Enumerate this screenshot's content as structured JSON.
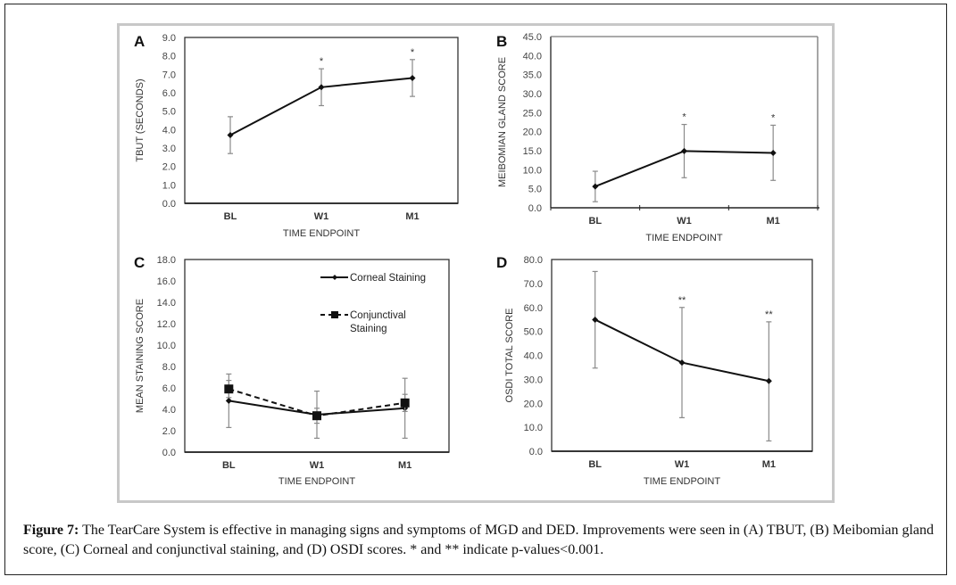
{
  "caption": {
    "label": "Figure 7:",
    "text": " The TearCare System is effective in managing signs and symptoms of MGD and DED.  Improvements were seen in (A) TBUT, (B) Meibomian gland score, (C) Corneal and conjunctival staining, and (D) OSDI scores. * and ** indicate p-values<0.001."
  },
  "chart_data": [
    {
      "panel": "A",
      "type": "line",
      "title": "",
      "xlabel": "TIME ENDPOINT",
      "ylabel": "TBUT (SECONDS)",
      "categories": [
        "BL",
        "W1",
        "M1"
      ],
      "ylim": [
        0,
        9
      ],
      "yticks": [
        "0.0",
        "1.0",
        "2.0",
        "3.0",
        "4.0",
        "5.0",
        "6.0",
        "7.0",
        "8.0",
        "9.0"
      ],
      "series": [
        {
          "name": "TBUT",
          "style": "solid",
          "marker": "diamond",
          "values": [
            3.7,
            6.3,
            6.8
          ],
          "err_low": [
            2.7,
            5.3,
            5.8
          ],
          "err_high": [
            4.7,
            7.3,
            7.8
          ]
        }
      ],
      "annotations": [
        "",
        "*",
        "*"
      ],
      "frame": "box"
    },
    {
      "panel": "B",
      "type": "line",
      "title": "",
      "xlabel": "TIME ENDPOINT",
      "ylabel": "MEIBOMIAN GLAND SCORE",
      "categories": [
        "BL",
        "W1",
        "M1"
      ],
      "ylim": [
        0,
        45
      ],
      "yticks": [
        "0.0",
        "5.0",
        "10.0",
        "15.0",
        "20.0",
        "25.0",
        "30.0",
        "35.0",
        "40.0",
        "45.0"
      ],
      "series": [
        {
          "name": "Meibomian gland score",
          "style": "solid",
          "marker": "diamond",
          "values": [
            5.6,
            14.9,
            14.4
          ],
          "err_low": [
            1.6,
            7.9,
            7.2
          ],
          "err_high": [
            9.6,
            21.9,
            21.7
          ]
        }
      ],
      "annotations": [
        "",
        "*",
        "*"
      ],
      "frame": "box-ticks"
    },
    {
      "panel": "C",
      "type": "line",
      "title": "",
      "xlabel": "TIME ENDPOINT",
      "ylabel": "MEAN  STAINING SCORE",
      "categories": [
        "BL",
        "W1",
        "M1"
      ],
      "ylim": [
        0,
        18
      ],
      "yticks": [
        "0.0",
        "2.0",
        "4.0",
        "6.0",
        "8.0",
        "10.0",
        "12.0",
        "14.0",
        "16.0",
        "18.0"
      ],
      "legend_position": "top-right",
      "series": [
        {
          "name": "Corneal Staining",
          "legend": [
            "Corneal Staining"
          ],
          "style": "solid",
          "marker": "diamond",
          "values": [
            4.8,
            3.5,
            4.1
          ],
          "err_low": [
            2.3,
            1.3,
            1.3
          ],
          "err_high": [
            7.3,
            5.7,
            6.9
          ]
        },
        {
          "name": "Conjunctival Staining",
          "legend": [
            "Conjunctival",
            "Staining"
          ],
          "style": "dashed",
          "marker": "square",
          "values": [
            5.9,
            3.4,
            4.6
          ],
          "err_low": [
            5.1,
            2.7,
            3.8
          ],
          "err_high": [
            6.7,
            4.1,
            5.4
          ]
        }
      ],
      "annotations": [
        "",
        "",
        ""
      ],
      "frame": "box"
    },
    {
      "panel": "D",
      "type": "line",
      "title": "",
      "xlabel": "TIME ENDPOINT",
      "ylabel": "OSDI TOTAL SCORE",
      "categories": [
        "BL",
        "W1",
        "M1"
      ],
      "ylim": [
        0,
        80
      ],
      "yticks": [
        "0.0",
        "10.0",
        "20.0",
        "30.0",
        "40.0",
        "50.0",
        "60.0",
        "70.0",
        "80.0"
      ],
      "series": [
        {
          "name": "OSDI total score",
          "style": "solid",
          "marker": "diamond",
          "values": [
            54.9,
            37.0,
            29.3
          ],
          "err_low": [
            34.7,
            14.0,
            4.3
          ],
          "err_high": [
            75.0,
            60.0,
            54.0
          ]
        }
      ],
      "annotations": [
        "",
        "**",
        "**"
      ],
      "frame": "box"
    }
  ]
}
